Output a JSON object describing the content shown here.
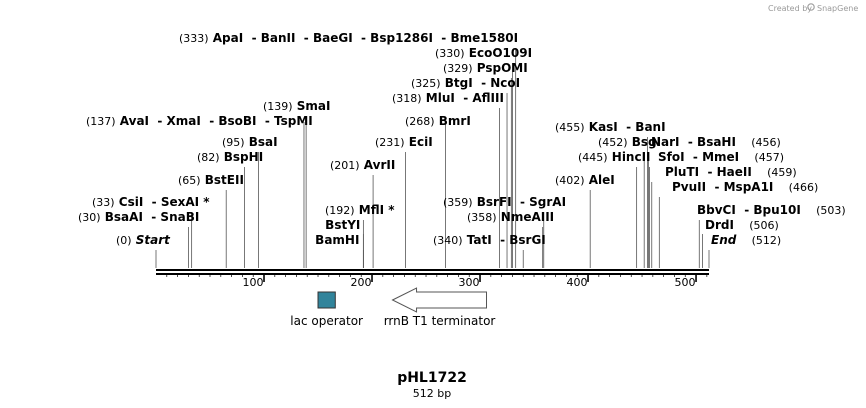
{
  "watermark": {
    "created_by": "Created by",
    "brand": "SnapGene"
  },
  "plasmid": {
    "name": "pHL1722",
    "size_label": "512 bp",
    "length_bp": 512
  },
  "axis": {
    "tick_labels": [
      "100",
      "200",
      "300",
      "400",
      "500"
    ],
    "tick_values": [
      100,
      200,
      300,
      400,
      500
    ]
  },
  "features": [
    {
      "name": "lac operator",
      "start": 150,
      "end": 166,
      "type": "operator",
      "color": "#31849b",
      "direction": "none"
    },
    {
      "name": "rrnB T1 terminator",
      "start": 219,
      "end": 306,
      "type": "terminator",
      "color": "#ffffff",
      "direction": "reverse"
    }
  ],
  "sites": [
    {
      "pos_label": "(333)",
      "pos": 333,
      "names": [
        "ApaI",
        "BanII",
        "BaeGI",
        "Bsp1286I",
        "Bme1580I"
      ]
    },
    {
      "pos_label": "(330)",
      "pos": 330,
      "names": [
        "EcoO109I"
      ]
    },
    {
      "pos_label": "(329)",
      "pos": 329,
      "names": [
        "PspOMI"
      ]
    },
    {
      "pos_label": "(325)",
      "pos": 325,
      "names": [
        "BtgI",
        "NcoI"
      ]
    },
    {
      "pos_label": "(318)",
      "pos": 318,
      "names": [
        "MluI",
        "AflIII"
      ]
    },
    {
      "pos_label": "(268)",
      "pos": 268,
      "names": [
        "BmrI"
      ]
    },
    {
      "pos_label": "(139)",
      "pos": 139,
      "names": [
        "SmaI"
      ]
    },
    {
      "pos_label": "(137)",
      "pos": 137,
      "names": [
        "AvaI",
        "XmaI",
        "BsoBI",
        "TspMI"
      ]
    },
    {
      "pos_label": "(455)",
      "pos": 455,
      "names": [
        "KasI",
        "BanI"
      ]
    },
    {
      "pos_label": "(231)",
      "pos": 231,
      "names": [
        "EciI"
      ]
    },
    {
      "pos_label": "(95)",
      "pos": 95,
      "names": [
        "BsaI"
      ]
    },
    {
      "pos_label": "(452)",
      "pos": 452,
      "names": [
        "BsgI"
      ]
    },
    {
      "pos_label": "(456)",
      "pos": 456,
      "names": [
        "NarI",
        "BsaHI"
      ],
      "pos_after": true
    },
    {
      "pos_label": "(82)",
      "pos": 82,
      "names": [
        "BspHI"
      ]
    },
    {
      "pos_label": "(445)",
      "pos": 445,
      "names": [
        "HincII"
      ]
    },
    {
      "pos_label": "(457)",
      "pos": 457,
      "names": [
        "SfoI",
        "MmeI"
      ],
      "pos_after": true
    },
    {
      "pos_label": "(201)",
      "pos": 201,
      "names": [
        "AvrII"
      ]
    },
    {
      "pos_label": "(459)",
      "pos": 459,
      "names": [
        "PluTI",
        "HaeII"
      ],
      "pos_after": true
    },
    {
      "pos_label": "(65)",
      "pos": 65,
      "names": [
        "BstEII"
      ]
    },
    {
      "pos_label": "(402)",
      "pos": 402,
      "names": [
        "AleI"
      ]
    },
    {
      "pos_label": "(466)",
      "pos": 466,
      "names": [
        "PvuII",
        "MspA1I"
      ],
      "pos_after": true
    },
    {
      "pos_label": "(33)",
      "pos": 33,
      "names": [
        "CsiI",
        "SexAI *"
      ]
    },
    {
      "pos_label": "(359)",
      "pos": 359,
      "names": [
        "BsrFI",
        "SgrAI"
      ]
    },
    {
      "pos_label": "(30)",
      "pos": 30,
      "names": [
        "BsaAI",
        "SnaBI"
      ]
    },
    {
      "pos_label": "(192)",
      "pos": 192,
      "names": [
        "MflI *"
      ]
    },
    {
      "pos_label": "(358)",
      "pos": 358,
      "names": [
        "NmeAIII"
      ]
    },
    {
      "pos_label": "(503)",
      "pos": 503,
      "names": [
        "BbvCI",
        "Bpu10I"
      ],
      "pos_after": true
    },
    {
      "pos_label": "",
      "pos": 192,
      "names": [
        "BstYI"
      ]
    },
    {
      "pos_label": "(506)",
      "pos": 506,
      "names": [
        "DrdI"
      ],
      "pos_after": true
    },
    {
      "pos_label": "(0)",
      "pos": 0,
      "names": [
        "Start"
      ],
      "italic": true
    },
    {
      "pos_label": "",
      "pos": 192,
      "names": [
        "BamHI"
      ]
    },
    {
      "pos_label": "(340)",
      "pos": 340,
      "names": [
        "TatI",
        "BsrGI"
      ]
    },
    {
      "pos_label": "(512)",
      "pos": 512,
      "names": [
        "End"
      ],
      "italic": true,
      "pos_after": true
    }
  ]
}
